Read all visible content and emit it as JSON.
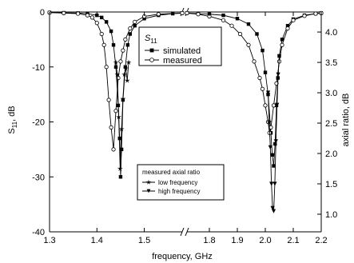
{
  "chart_data": {
    "type": "line",
    "xlabel": "frequency, GHz",
    "ylabel_left": "S11, dB",
    "ylabel_right": "axial ratio, dB",
    "x_ticks": [
      "1.3",
      "1.4",
      "1.5",
      "1.8",
      "1.9",
      "2.0",
      "2.1",
      "2.2"
    ],
    "y_left_ticks": [
      "0",
      "-10",
      "-20",
      "-30",
      "-40"
    ],
    "y_right_ticks": [
      "4.0",
      "3.5",
      "3.0",
      "2.5",
      "2.0",
      "1.5",
      "1.0"
    ],
    "ylim_left": [
      -40,
      0
    ],
    "ylim_right": [
      0.71,
      4.33
    ],
    "axis_break": "1.58-1.72",
    "legend_top": {
      "title": "S11",
      "title_main": "S",
      "title_sub": "11",
      "entries": [
        "simulated",
        "measured"
      ]
    },
    "legend_bottom": {
      "title": "measured axial ratio",
      "entries": [
        "low frequency",
        "high frequency"
      ]
    },
    "series": [
      {
        "name": "simulated",
        "axis": "left",
        "marker": "square-filled",
        "points": [
          [
            1.3,
            -0.1
          ],
          [
            1.33,
            -0.15
          ],
          [
            1.36,
            -0.2
          ],
          [
            1.38,
            -0.3
          ],
          [
            1.4,
            -0.6
          ],
          [
            1.41,
            -1.0
          ],
          [
            1.42,
            -1.8
          ],
          [
            1.43,
            -3.5
          ],
          [
            1.435,
            -6
          ],
          [
            1.44,
            -10
          ],
          [
            1.445,
            -17
          ],
          [
            1.448,
            -23
          ],
          [
            1.45,
            -30
          ],
          [
            1.452,
            -25
          ],
          [
            1.455,
            -16
          ],
          [
            1.46,
            -10
          ],
          [
            1.465,
            -6
          ],
          [
            1.47,
            -4
          ],
          [
            1.48,
            -2.5
          ],
          [
            1.5,
            -1.2
          ],
          [
            1.53,
            -0.6
          ],
          [
            1.56,
            -0.3
          ],
          [
            1.58,
            -0.2
          ],
          [
            1.72,
            -0.2
          ],
          [
            1.76,
            -0.3
          ],
          [
            1.8,
            -0.4
          ],
          [
            1.85,
            -0.6
          ],
          [
            1.9,
            -1.2
          ],
          [
            1.94,
            -2.2
          ],
          [
            1.97,
            -4
          ],
          [
            1.99,
            -7
          ],
          [
            2.0,
            -11
          ],
          [
            2.01,
            -15
          ],
          [
            2.02,
            -22
          ],
          [
            2.025,
            -26
          ],
          [
            2.03,
            -28
          ],
          [
            2.035,
            -24
          ],
          [
            2.04,
            -17
          ],
          [
            2.045,
            -12
          ],
          [
            2.05,
            -8
          ],
          [
            2.06,
            -5
          ],
          [
            2.08,
            -2.5
          ],
          [
            2.1,
            -1.3
          ],
          [
            2.14,
            -0.6
          ],
          [
            2.18,
            -0.3
          ],
          [
            2.2,
            -0.2
          ]
        ]
      },
      {
        "name": "measured",
        "axis": "left",
        "marker": "circle-open",
        "points": [
          [
            1.3,
            -0.1
          ],
          [
            1.33,
            -0.2
          ],
          [
            1.36,
            -0.3
          ],
          [
            1.38,
            -0.6
          ],
          [
            1.39,
            -1.0
          ],
          [
            1.4,
            -2.0
          ],
          [
            1.41,
            -4.0
          ],
          [
            1.415,
            -6
          ],
          [
            1.42,
            -10
          ],
          [
            1.425,
            -16
          ],
          [
            1.43,
            -21
          ],
          [
            1.435,
            -25
          ],
          [
            1.44,
            -18
          ],
          [
            1.445,
            -12
          ],
          [
            1.45,
            -9
          ],
          [
            1.455,
            -7
          ],
          [
            1.46,
            -5
          ],
          [
            1.47,
            -3
          ],
          [
            1.48,
            -1.8
          ],
          [
            1.5,
            -0.8
          ],
          [
            1.53,
            -0.4
          ],
          [
            1.58,
            -0.2
          ],
          [
            1.72,
            -0.2
          ],
          [
            1.76,
            -0.4
          ],
          [
            1.8,
            -0.8
          ],
          [
            1.85,
            -1.5
          ],
          [
            1.88,
            -2.5
          ],
          [
            1.91,
            -4
          ],
          [
            1.94,
            -6
          ],
          [
            1.96,
            -9
          ],
          [
            1.98,
            -12
          ],
          [
            1.99,
            -14
          ],
          [
            2.0,
            -17
          ],
          [
            2.01,
            -20
          ],
          [
            2.015,
            -22
          ],
          [
            2.02,
            -21
          ],
          [
            2.03,
            -17
          ],
          [
            2.04,
            -13
          ],
          [
            2.05,
            -9
          ],
          [
            2.06,
            -6
          ],
          [
            2.08,
            -3
          ],
          [
            2.1,
            -1.5
          ],
          [
            2.14,
            -0.7
          ],
          [
            2.18,
            -0.3
          ],
          [
            2.2,
            -0.2
          ]
        ]
      },
      {
        "name": "low frequency",
        "axis": "right",
        "marker": "star-filled",
        "points": [
          [
            1.44,
            3.5
          ],
          [
            1.443,
            3.3
          ],
          [
            1.446,
            2.6
          ],
          [
            1.449,
            1.75
          ],
          [
            1.452,
            2.4
          ],
          [
            1.455,
            2.9
          ],
          [
            1.458,
            3.3
          ],
          [
            1.461,
            3.4
          ],
          [
            1.464,
            3.2
          ],
          [
            1.467,
            3.5
          ]
        ]
      },
      {
        "name": "high frequency",
        "axis": "right",
        "marker": "triangle-down-filled",
        "points": [
          [
            2.01,
            3.0
          ],
          [
            2.014,
            2.5
          ],
          [
            2.018,
            2.1
          ],
          [
            2.022,
            1.5
          ],
          [
            2.026,
            1.1
          ],
          [
            2.03,
            1.05
          ],
          [
            2.034,
            1.5
          ],
          [
            2.038,
            2.2
          ],
          [
            2.042,
            2.8
          ],
          [
            2.046,
            3.3
          ],
          [
            2.05,
            3.6
          ]
        ]
      }
    ]
  }
}
